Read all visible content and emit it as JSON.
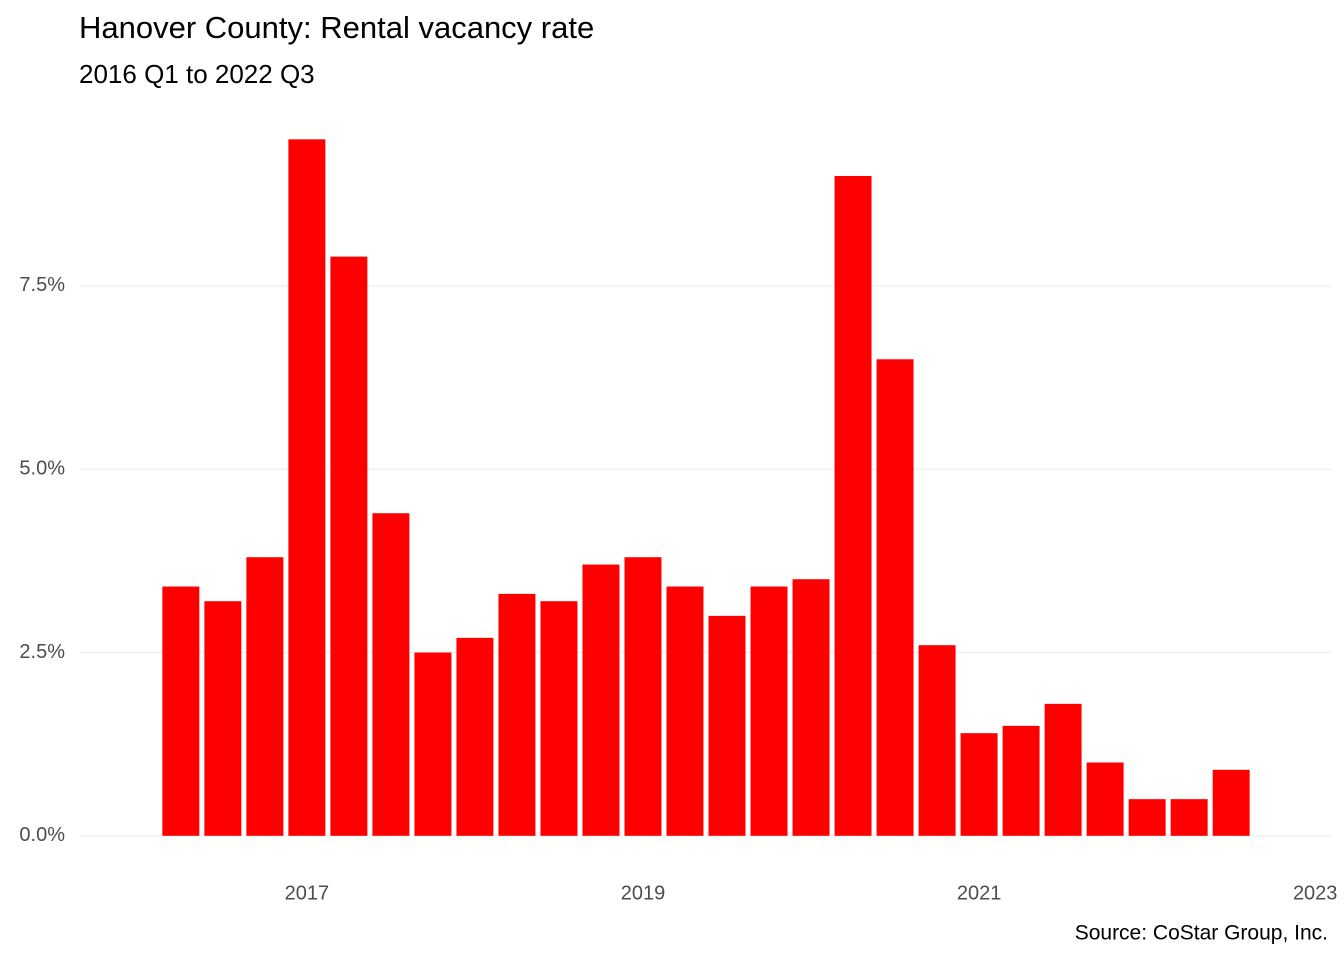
{
  "chart_data": {
    "type": "bar",
    "title": "Hanover County: Rental vacancy rate",
    "subtitle": "2016 Q1 to 2022 Q3",
    "caption": "Source: CoStar Group, Inc.",
    "x": [
      2016.25,
      2016.5,
      2016.75,
      2017,
      2017.25,
      2017.5,
      2017.75,
      2018,
      2018.25,
      2018.5,
      2018.75,
      2019,
      2019.25,
      2019.5,
      2019.75,
      2020,
      2020.25,
      2020.5,
      2020.75,
      2021,
      2021.25,
      2021.5,
      2021.75,
      2022,
      2022.25,
      2022.5
    ],
    "values": [
      3.4,
      3.2,
      3.8,
      9.5,
      7.9,
      4.4,
      2.5,
      2.7,
      3.3,
      3.2,
      3.7,
      3.8,
      3.4,
      3.0,
      3.4,
      3.5,
      9.0,
      6.5,
      2.6,
      1.4,
      1.5,
      1.8,
      1.0,
      0.5,
      0.5,
      0.9
    ],
    "color": "#ff0000",
    "xlim": [
      2015.65,
      2023.1
    ],
    "xticks": [
      2017,
      2019,
      2021,
      2023
    ],
    "ylim": [
      -0.33,
      9.9
    ],
    "yticks": [
      {
        "value": 0,
        "label": "0.0%"
      },
      {
        "value": 2.5,
        "label": "2.5%"
      },
      {
        "value": 5,
        "label": "5.0%"
      },
      {
        "value": 7.5,
        "label": "7.5%"
      }
    ],
    "grid": true
  }
}
